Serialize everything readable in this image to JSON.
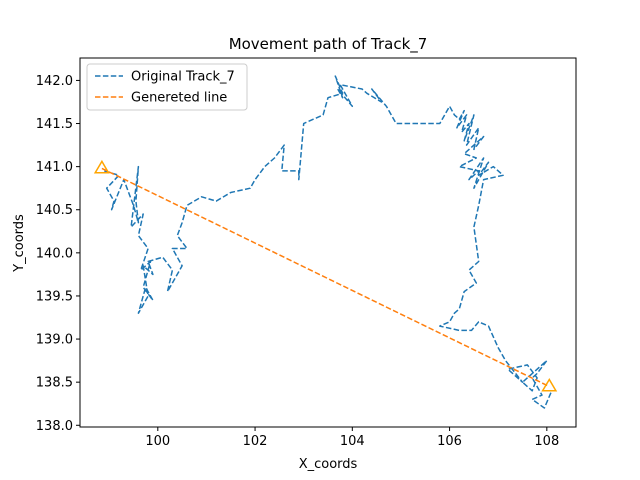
{
  "chart_data": {
    "type": "line",
    "title": "Movement path of Track_7",
    "xlabel": "X_coords",
    "ylabel": "Y_coords",
    "xlim": [
      98.4,
      108.6
    ],
    "ylim": [
      137.98,
      142.26
    ],
    "xticks": [
      100,
      102,
      104,
      106,
      108
    ],
    "xtick_labels": [
      "100",
      "102",
      "104",
      "106",
      "108"
    ],
    "yticks": [
      138.0,
      138.5,
      139.0,
      139.5,
      140.0,
      140.5,
      141.0,
      141.5,
      142.0
    ],
    "ytick_labels": [
      "138.0",
      "138.5",
      "139.0",
      "139.5",
      "140.0",
      "140.5",
      "141.0",
      "141.5",
      "142.0"
    ],
    "grid": false,
    "legend_position": "upper-left",
    "series": [
      {
        "name": "Original Track_7",
        "color": "#1f77b4",
        "style": "dashed",
        "x": [
          98.9,
          99.2,
          98.95,
          99.1,
          99.05,
          99.3,
          99.5,
          99.6,
          99.55,
          99.6,
          99.45,
          99.7,
          99.6,
          99.8,
          99.65,
          99.85,
          99.7,
          99.9,
          99.75,
          99.6,
          99.8,
          99.7,
          99.9,
          99.8,
          100.1,
          100.3,
          100.2,
          100.5,
          100.3,
          100.6,
          100.4,
          100.5,
          100.6,
          100.9,
          101.2,
          101.5,
          101.9,
          102.0,
          102.2,
          102.4,
          102.6,
          102.55,
          102.9,
          102.9,
          103.0,
          103.4,
          103.5,
          103.8,
          103.65,
          103.8,
          103.7,
          104.0,
          103.75,
          104.2,
          104.3,
          104.6,
          104.4,
          104.7,
          104.9,
          105.3,
          105.8,
          106.0,
          106.1,
          106.2,
          106.3,
          106.15,
          106.35,
          106.25,
          106.4,
          106.3,
          106.5,
          106.35,
          106.6,
          106.5,
          106.7,
          106.3,
          106.55,
          106.2,
          106.6,
          106.4,
          106.7,
          106.5,
          106.8,
          106.6,
          106.9,
          107.1,
          106.7,
          106.6,
          106.5,
          106.6,
          106.4,
          106.55,
          106.3,
          106.2,
          106.1,
          106.0,
          105.8,
          106.2,
          106.45,
          106.6,
          106.8,
          107.0,
          107.15,
          107.5,
          107.2,
          107.6,
          107.8,
          107.7,
          107.5,
          108.0,
          107.8,
          107.7,
          107.9,
          107.7,
          107.95,
          108.1
        ],
        "y": [
          140.95,
          140.9,
          140.75,
          140.6,
          140.5,
          140.85,
          140.55,
          140.35,
          140.6,
          141.0,
          140.3,
          140.45,
          140.2,
          140.05,
          139.8,
          139.9,
          139.6,
          139.45,
          139.6,
          139.3,
          139.5,
          139.85,
          139.75,
          139.9,
          139.95,
          139.8,
          139.55,
          139.85,
          140.05,
          140.05,
          140.2,
          140.35,
          140.55,
          140.65,
          140.6,
          140.7,
          140.75,
          140.85,
          141.0,
          141.1,
          141.25,
          140.95,
          140.95,
          140.85,
          141.5,
          141.6,
          141.8,
          141.85,
          142.05,
          141.8,
          141.9,
          141.7,
          141.95,
          141.9,
          141.85,
          141.75,
          141.9,
          141.7,
          141.5,
          141.5,
          141.5,
          141.7,
          141.6,
          141.55,
          141.65,
          141.45,
          141.6,
          141.4,
          141.5,
          141.3,
          141.6,
          141.25,
          141.45,
          141.2,
          141.35,
          141.15,
          141.1,
          141.0,
          140.95,
          140.85,
          141.1,
          140.75,
          141.05,
          140.9,
          141.0,
          140.9,
          140.85,
          140.55,
          140.3,
          139.9,
          139.8,
          139.65,
          139.55,
          139.35,
          139.3,
          139.2,
          139.15,
          139.1,
          139.1,
          139.2,
          139.15,
          138.9,
          138.75,
          138.5,
          138.65,
          138.7,
          138.55,
          138.4,
          138.5,
          138.75,
          138.6,
          138.55,
          138.35,
          138.3,
          138.2,
          138.4
        ]
      },
      {
        "name": "Genereted line",
        "color": "#ff7f0e",
        "style": "dashed",
        "x": [
          98.85,
          108.05
        ],
        "y": [
          140.98,
          138.45
        ]
      }
    ],
    "markers": {
      "shape": "triangle",
      "color": "#ffa500",
      "points": [
        {
          "x": 98.85,
          "y": 140.98
        },
        {
          "x": 108.05,
          "y": 138.45
        }
      ]
    }
  }
}
